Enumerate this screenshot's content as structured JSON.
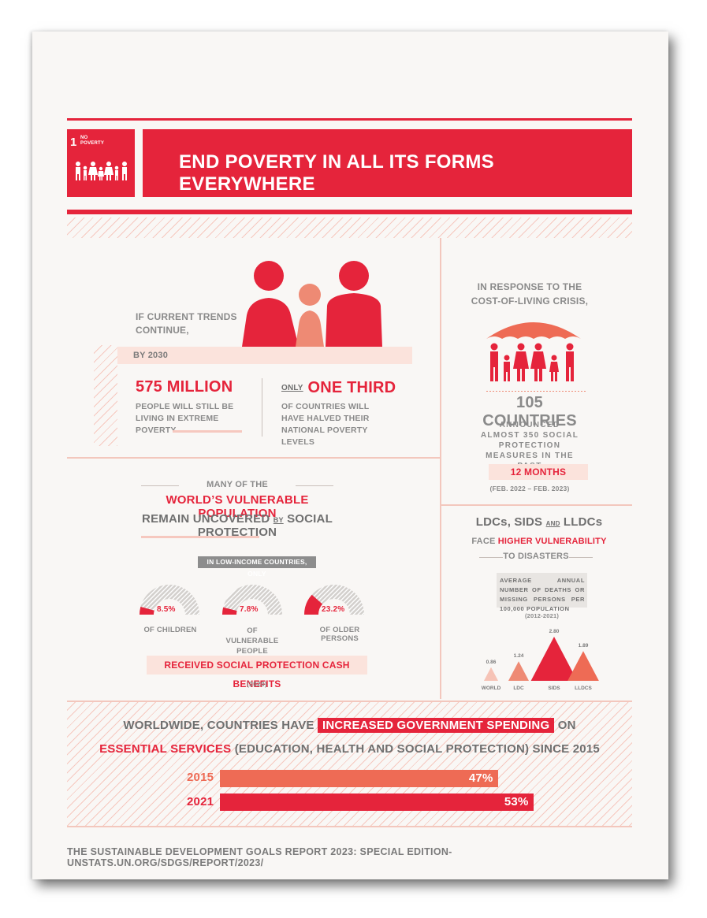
{
  "header": {
    "goal_number": "1",
    "goal_name": "NO POVERTY",
    "title": "END POVERTY IN ALL ITS FORMS EVERYWHERE"
  },
  "trends": {
    "intro": "IF CURRENT TRENDS CONTINUE,",
    "by_year": "BY 2030",
    "left_value": "575 MILLION",
    "left_text": "PEOPLE WILL STILL BE LIVING IN EXTREME POVERTY",
    "right_prefix": "ONLY",
    "right_value": "ONE THIRD",
    "right_text": "OF COUNTRIES WILL HAVE HALVED THEIR NATIONAL POVERTY LEVELS"
  },
  "cost_of_living": {
    "intro": "IN RESPONSE TO THE COST-OF-LIVING CRISIS,",
    "value": "105 COUNTRIES",
    "text": "ANNOUNCED ALMOST 350 SOCIAL PROTECTION MEASURES IN THE PAST",
    "period": "12 MONTHS",
    "range": "(FEB. 2022 – FEB. 2023)"
  },
  "vulnerable": {
    "line1": "MANY OF THE",
    "line2": "WORLD’S VULNERABLE POPULATION",
    "line3_a": "REMAIN UNCOVERED",
    "line3_by": "BY",
    "line3_b": "SOCIAL PROTECTION",
    "tag": "IN LOW-INCOME COUNTRIES, ONLY",
    "gauges": [
      {
        "value": "8.5%",
        "fraction": 0.085,
        "label": "OF CHILDREN"
      },
      {
        "value": "7.8%",
        "fraction": 0.078,
        "label": "OF VULNERABLE PEOPLE"
      },
      {
        "value": "23.2%",
        "fraction": 0.232,
        "label": "OF OLDER PERSONS"
      }
    ],
    "received": "RECEIVED SOCIAL PROTECTION CASH BENEFITS",
    "year": "(2020)"
  },
  "disasters": {
    "title_a": "LDCs, SIDS",
    "title_and": "AND",
    "title_b": "LLDCs",
    "line2_a": "FACE",
    "line2_b": "HIGHER VULNERABILITY",
    "line3": "TO DISASTERS",
    "desc": "AVERAGE ANNUAL NUMBER OF DEATHS OR MISSING PERSONS PER 100,000 POPULATION",
    "period": "(2012-2021)",
    "chart_data": {
      "type": "bar",
      "categories": [
        "WORLD",
        "LDC",
        "SIDS",
        "LLDCS"
      ],
      "values": [
        0.86,
        1.24,
        2.8,
        1.89
      ],
      "value_labels": [
        "0.86",
        "1.24",
        "2.80",
        "1.89"
      ],
      "colors": [
        "#f6c3b6",
        "#ee8a74",
        "#e5243b",
        "#ee6b55"
      ]
    }
  },
  "spending": {
    "line1_a": "WORLDWIDE, COUNTRIES HAVE",
    "line1_highlight": "INCREASED GOVERNMENT SPENDING",
    "line1_b": "ON",
    "line2_a": "ESSENTIAL SERVICES",
    "line2_b": "(EDUCATION, HEALTH AND SOCIAL PROTECTION) SINCE 2015",
    "bars": [
      {
        "year": "2015",
        "label": "47%",
        "value": 47,
        "color": "#ee6b55"
      },
      {
        "year": "2021",
        "label": "53%",
        "value": 53,
        "color": "#e5243b"
      }
    ]
  },
  "footer": "THE SUSTAINABLE DEVELOPMENT GOALS REPORT 2023: SPECIAL EDITION- UNSTATS.UN.ORG/SDGS/REPORT/2023/"
}
